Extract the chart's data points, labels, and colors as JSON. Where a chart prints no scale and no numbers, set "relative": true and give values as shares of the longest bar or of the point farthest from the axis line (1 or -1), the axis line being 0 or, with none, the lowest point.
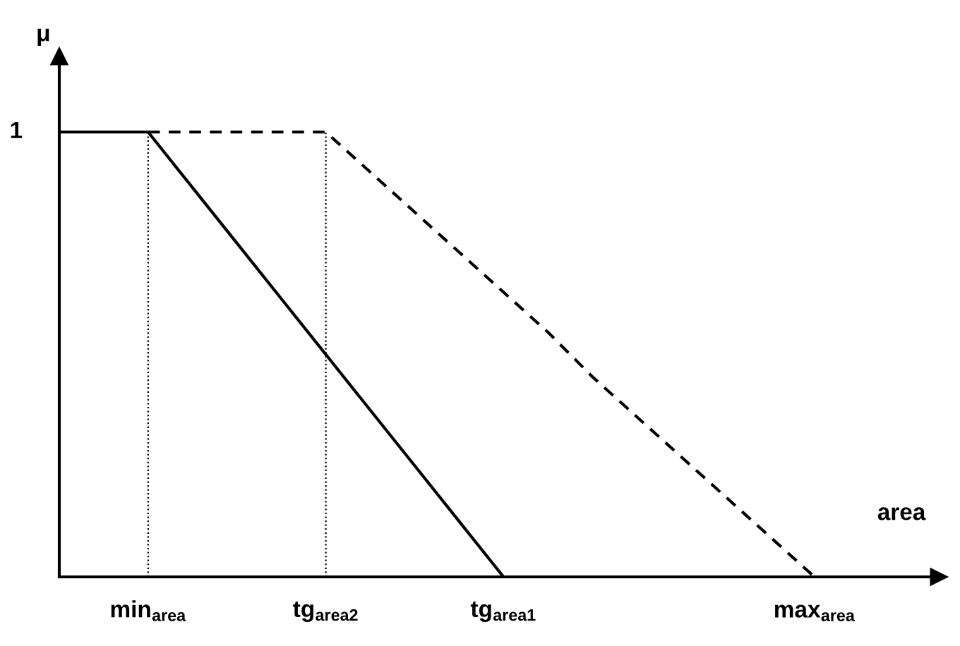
{
  "chart_data": {
    "type": "line",
    "relative": true,
    "xlabel": "area",
    "ylabel": "μ",
    "categories": [
      null,
      null,
      "min$_{area}$",
      null,
      null,
      null,
      "tg$_{area2}$",
      null,
      null,
      null,
      "tg$_{area1}$",
      null,
      null,
      null,
      null,
      null,
      null,
      "max$_{area}$"
    ],
    "series": [
      {
        "values": [
          1,
          1,
          1,
          0.875,
          0.75,
          0.625,
          0.5,
          0.375,
          0.25,
          0.125,
          0,
          null,
          null,
          null,
          null,
          null,
          null,
          null
        ],
        "color": "#000000",
        "line_style": "solid"
      },
      {
        "values": [
          null,
          null,
          1,
          1,
          1,
          1,
          1,
          0.91,
          0.82,
          0.73,
          0.64,
          0.55,
          0.45,
          0.36,
          0.27,
          0.18,
          0.09,
          0
        ],
        "color": "#000000",
        "line_style": "dashed"
      }
    ],
    "ref_lines": [
      {
        "axis": "x",
        "value": "min$_{area}$",
        "color": "#000000",
        "line_style": "dotted"
      },
      {
        "axis": "x",
        "value": "tg$_{area2}$",
        "color": "#000000",
        "line_style": "dotted"
      }
    ],
    "annotations": [
      "1"
    ],
    "grid": false,
    "legend": false,
    "marker": "none"
  }
}
